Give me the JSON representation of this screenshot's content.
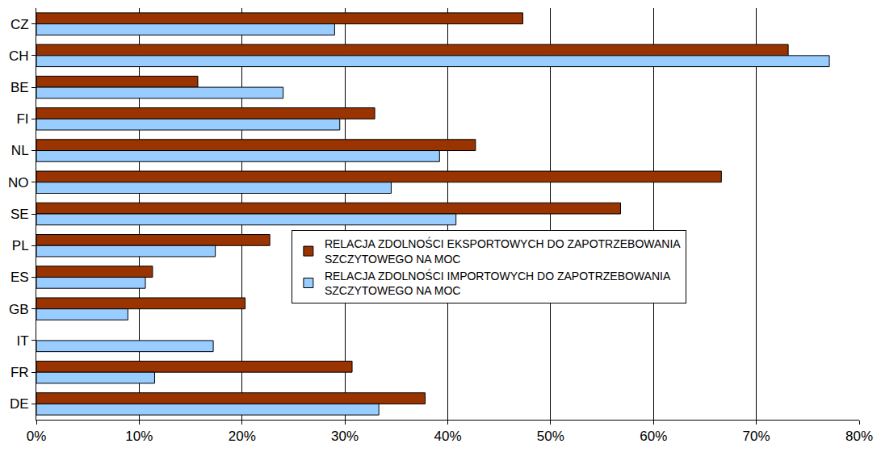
{
  "chart_data": {
    "type": "bar",
    "orientation": "horizontal",
    "categories": [
      "CZ",
      "CH",
      "BE",
      "FI",
      "NL",
      "NO",
      "SE",
      "PL",
      "ES",
      "GB",
      "IT",
      "FR",
      "DE"
    ],
    "series": [
      {
        "name": "RELACJA ZDOLNOŚCI EKSPORTOWYCH DO ZAPOTRZEBOWANIA SZCZYTOWEGO NA MOC",
        "color": "#993300",
        "values": [
          47.3,
          73.1,
          15.7,
          32.9,
          42.7,
          66.6,
          56.8,
          22.7,
          11.3,
          20.3,
          null,
          30.7,
          37.8
        ]
      },
      {
        "name": "RELACJA ZDOLNOŚCI IMPORTOWYCH DO ZAPOTRZEBOWANIA SZCZYTOWEGO NA MOC",
        "color": "#99ccff",
        "values": [
          29.0,
          77.1,
          24.0,
          29.5,
          39.2,
          34.5,
          40.8,
          17.4,
          10.6,
          8.9,
          17.2,
          11.5,
          33.3
        ]
      }
    ],
    "xlim": [
      0,
      80
    ],
    "xticks": [
      {
        "value": 0,
        "label": "0%"
      },
      {
        "value": 10,
        "label": "10%"
      },
      {
        "value": 20,
        "label": "20%"
      },
      {
        "value": 30,
        "label": "30%"
      },
      {
        "value": 40,
        "label": "40%"
      },
      {
        "value": 50,
        "label": "50%"
      },
      {
        "value": 60,
        "label": "60%"
      },
      {
        "value": 70,
        "label": "70%"
      },
      {
        "value": 80,
        "label": "80%"
      }
    ],
    "grid": true,
    "legend": "right"
  }
}
